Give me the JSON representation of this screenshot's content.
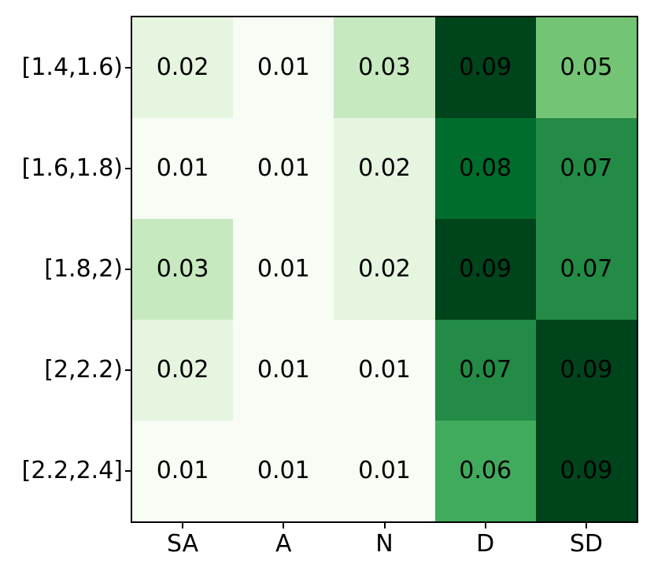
{
  "chart_data": {
    "type": "heatmap",
    "title": "",
    "xlabel": "",
    "ylabel": "",
    "columns": [
      "SA",
      "A",
      "N",
      "D",
      "SD"
    ],
    "rows": [
      "[1.4,1.6)",
      "[1.6,1.8)",
      "[1.8,2)",
      "[2,2.2)",
      "[2.2,2.4]"
    ],
    "values": [
      [
        0.02,
        0.01,
        0.03,
        0.09,
        0.05
      ],
      [
        0.01,
        0.01,
        0.02,
        0.08,
        0.07
      ],
      [
        0.03,
        0.01,
        0.02,
        0.09,
        0.07
      ],
      [
        0.02,
        0.01,
        0.01,
        0.07,
        0.09
      ],
      [
        0.01,
        0.01,
        0.01,
        0.06,
        0.09
      ]
    ],
    "cell_labels": [
      [
        "0.02",
        "0.01",
        "0.03",
        "0.09",
        "0.05"
      ],
      [
        "0.01",
        "0.01",
        "0.02",
        "0.08",
        "0.07"
      ],
      [
        "0.03",
        "0.01",
        "0.02",
        "0.09",
        "0.07"
      ],
      [
        "0.02",
        "0.01",
        "0.01",
        "0.07",
        "0.09"
      ],
      [
        "0.01",
        "0.01",
        "0.01",
        "0.06",
        "0.09"
      ]
    ],
    "colormap": "Greens",
    "vmin": 0.01,
    "vmax": 0.09,
    "palette": {
      "0.01": "#f7fcf5",
      "0.02": "#e5f5e0",
      "0.03": "#c7e9c0",
      "0.05": "#74c476",
      "0.06": "#41ab5d",
      "0.07": "#238b45",
      "0.08": "#006d2c",
      "0.09": "#00441b"
    },
    "cell_text_color": "#000000",
    "axis_color": "#000000",
    "background": "#ffffff",
    "grid": false,
    "legend": "none"
  }
}
